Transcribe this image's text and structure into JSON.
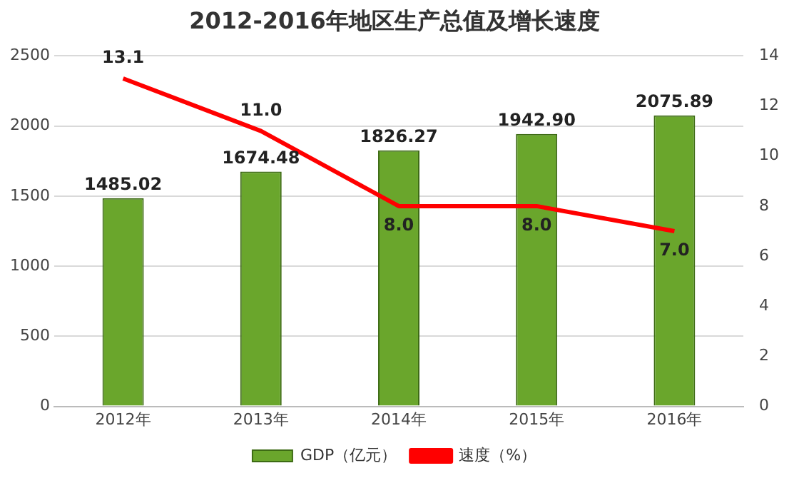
{
  "chart_data": {
    "type": "bar",
    "title": "2012-2016年地区生产总值及增长速度",
    "categories": [
      "2012年",
      "2013年",
      "2014年",
      "2015年",
      "2016年"
    ],
    "series": [
      {
        "name": "GDP（亿元）",
        "color": "#6aa62c",
        "values": [
          1485.02,
          1674.48,
          1826.27,
          1942.9,
          2075.89
        ],
        "value_labels": [
          "1485.02",
          "1674.48",
          "1826.27",
          "1942.90",
          "2075.89"
        ]
      },
      {
        "name": "速度（%）",
        "type": "line",
        "axis": "y2",
        "color": "#ff0000",
        "values": [
          13.1,
          11.0,
          8.0,
          8.0,
          7.0
        ],
        "value_labels": [
          "13.1",
          "11.0",
          "8.0",
          "8.0",
          "7.0"
        ]
      }
    ],
    "ylim": [
      0,
      2500
    ],
    "yticks": [
      0,
      500,
      1000,
      1500,
      2000,
      2500
    ],
    "y2lim": [
      0,
      14
    ],
    "y2ticks": [
      0,
      2,
      4,
      6,
      8,
      10,
      12,
      14
    ],
    "grid": "y",
    "legend": "bottom",
    "marker": "none"
  }
}
